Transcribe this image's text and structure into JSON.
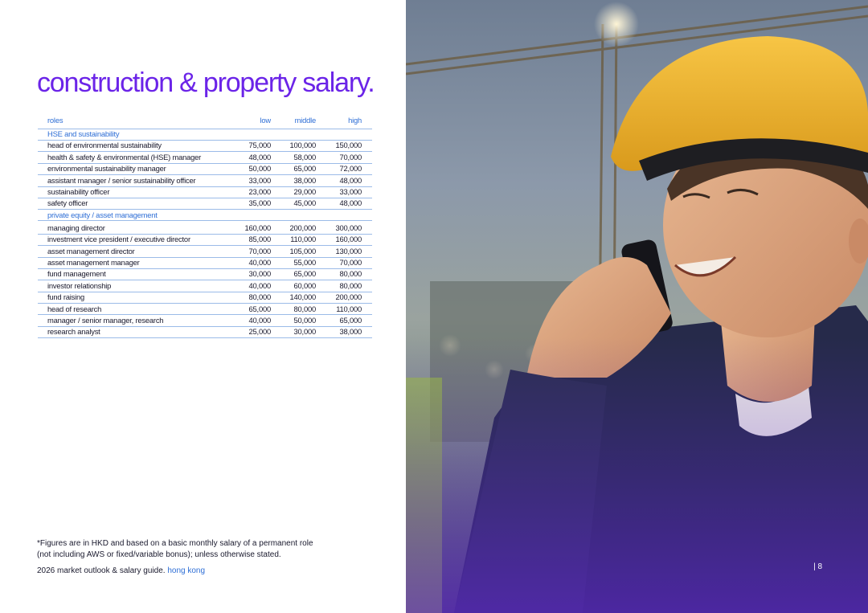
{
  "title": "construction & property salary.",
  "table": {
    "headers": {
      "role": "roles",
      "low": "low",
      "middle": "middle",
      "high": "high"
    },
    "sections": [
      {
        "name": "HSE and sustainability",
        "rows": [
          {
            "role": "head of environmental sustainability",
            "low": "75,000",
            "middle": "100,000",
            "high": "150,000"
          },
          {
            "role": "health & safety & environmental (HSE) manager",
            "low": "48,000",
            "middle": "58,000",
            "high": "70,000"
          },
          {
            "role": "environmental sustainability manager",
            "low": "50,000",
            "middle": "65,000",
            "high": "72,000"
          },
          {
            "role": "assistant manager / senior sustainability officer",
            "low": "33,000",
            "middle": "38,000",
            "high": "48,000"
          },
          {
            "role": "sustainability officer",
            "low": "23,000",
            "middle": "29,000",
            "high": "33,000"
          },
          {
            "role": "safety officer",
            "low": "35,000",
            "middle": "45,000",
            "high": "48,000"
          }
        ]
      },
      {
        "name": "private equity / asset management",
        "rows": [
          {
            "role": "managing director",
            "low": "160,000",
            "middle": "200,000",
            "high": "300,000"
          },
          {
            "role": "investment vice president / executive director",
            "low": "85,000",
            "middle": "110,000",
            "high": "160,000"
          },
          {
            "role": "asset management director",
            "low": "70,000",
            "middle": "105,000",
            "high": "130,000"
          },
          {
            "role": "asset management manager",
            "low": "40,000",
            "middle": "55,000",
            "high": "70,000"
          },
          {
            "role": "fund management",
            "low": "30,000",
            "middle": "65,000",
            "high": "80,000"
          },
          {
            "role": "investor relationship",
            "low": "40,000",
            "middle": "60,000",
            "high": "80,000"
          },
          {
            "role": "fund raising",
            "low": "80,000",
            "middle": "140,000",
            "high": "200,000"
          },
          {
            "role": "head of research",
            "low": "65,000",
            "middle": "80,000",
            "high": "110,000"
          },
          {
            "role": "manager / senior manager, research",
            "low": "40,000",
            "middle": "50,000",
            "high": "65,000"
          },
          {
            "role": "research analyst",
            "low": "25,000",
            "middle": "30,000",
            "high": "38,000"
          }
        ]
      }
    ]
  },
  "footnote": {
    "line1": "*Figures are in HKD and based on a basic monthly salary of a permanent role",
    "line2": "(not including AWS or fixed/variable bonus); unless otherwise stated."
  },
  "footer": {
    "guide": "2026 market outlook & salary guide.",
    "region": "hong kong"
  },
  "page_number": "| 8",
  "colors": {
    "title": "#6b24e8",
    "accent_blue": "#2f6fd6",
    "rule": "#9bbbe8",
    "helmet": "#f2b52a",
    "jacket": "#262a4a"
  },
  "photo": {
    "icon": "construction-worker-photo"
  }
}
